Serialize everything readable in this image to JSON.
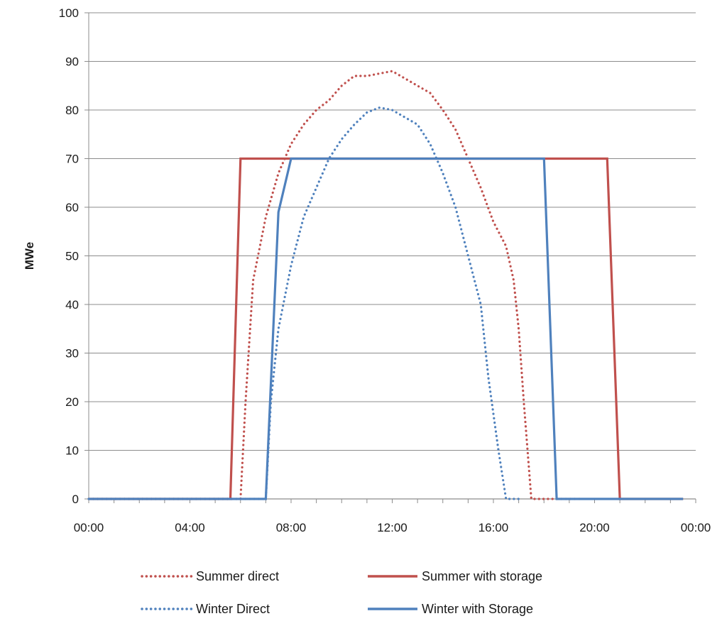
{
  "chart_data": {
    "type": "line",
    "title": "",
    "xlabel": "",
    "ylabel": "MWe",
    "ylim": [
      0,
      100
    ],
    "yticks": [
      0,
      10,
      20,
      30,
      40,
      50,
      60,
      70,
      80,
      90,
      100
    ],
    "xlim": [
      0,
      24
    ],
    "xticks": [
      {
        "value": 0,
        "label": "00:00"
      },
      {
        "value": 4,
        "label": "04:00"
      },
      {
        "value": 8,
        "label": "08:00"
      },
      {
        "value": 12,
        "label": "12:00"
      },
      {
        "value": 16,
        "label": "16:00"
      },
      {
        "value": 20,
        "label": "20:00"
      },
      {
        "value": 24,
        "label": "00:00"
      }
    ],
    "grid": "horizontal",
    "legend_position": "bottom",
    "series": [
      {
        "name": "Summer direct",
        "color": "#c0504d",
        "style": "dotted",
        "points": [
          [
            0,
            0
          ],
          [
            6.0,
            0
          ],
          [
            6.2,
            20
          ],
          [
            6.5,
            45
          ],
          [
            7.0,
            58
          ],
          [
            7.5,
            67
          ],
          [
            8.0,
            73
          ],
          [
            8.5,
            77
          ],
          [
            9.0,
            80
          ],
          [
            9.5,
            82
          ],
          [
            10.0,
            85
          ],
          [
            10.5,
            87
          ],
          [
            11.0,
            87
          ],
          [
            11.5,
            87.5
          ],
          [
            12.0,
            88
          ],
          [
            12.5,
            86.5
          ],
          [
            13.0,
            85
          ],
          [
            13.5,
            83.5
          ],
          [
            14.0,
            80
          ],
          [
            14.5,
            76
          ],
          [
            15.0,
            70
          ],
          [
            15.5,
            64
          ],
          [
            16.0,
            57
          ],
          [
            16.5,
            52
          ],
          [
            16.8,
            45
          ],
          [
            17.0,
            35
          ],
          [
            17.2,
            20
          ],
          [
            17.5,
            0
          ],
          [
            19.5,
            0
          ]
        ]
      },
      {
        "name": "Summer with storage",
        "color": "#c0504d",
        "style": "solid",
        "points": [
          [
            0,
            0
          ],
          [
            5.6,
            0
          ],
          [
            6.0,
            70
          ],
          [
            20.5,
            70
          ],
          [
            21.0,
            0
          ],
          [
            23.5,
            0
          ]
        ]
      },
      {
        "name": "Winter Direct",
        "color": "#4f81bd",
        "style": "dotted",
        "points": [
          [
            0,
            0
          ],
          [
            7.0,
            0
          ],
          [
            7.2,
            20
          ],
          [
            7.5,
            35
          ],
          [
            8.0,
            48
          ],
          [
            8.5,
            58
          ],
          [
            9.0,
            64
          ],
          [
            9.5,
            70
          ],
          [
            10.0,
            74
          ],
          [
            10.5,
            77
          ],
          [
            11.0,
            79.5
          ],
          [
            11.5,
            80.5
          ],
          [
            12.0,
            80
          ],
          [
            12.5,
            78.5
          ],
          [
            13.0,
            77
          ],
          [
            13.5,
            73
          ],
          [
            14.0,
            67
          ],
          [
            14.5,
            60
          ],
          [
            15.0,
            50
          ],
          [
            15.5,
            40
          ],
          [
            15.8,
            25
          ],
          [
            16.2,
            10
          ],
          [
            16.5,
            0
          ],
          [
            17.0,
            0
          ]
        ]
      },
      {
        "name": "Winter with Storage",
        "color": "#4f81bd",
        "style": "solid",
        "points": [
          [
            0,
            0
          ],
          [
            7.0,
            0
          ],
          [
            7.5,
            59
          ],
          [
            8.0,
            70
          ],
          [
            18.0,
            70
          ],
          [
            18.5,
            0
          ],
          [
            23.5,
            0
          ]
        ]
      }
    ]
  }
}
